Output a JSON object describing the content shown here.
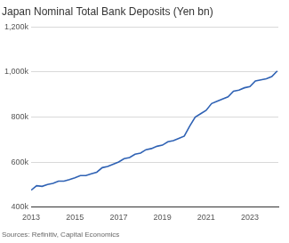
{
  "chart_data": {
    "type": "line",
    "title": "Japan Nominal Total Bank Deposits (Yen bn)",
    "source": "Sources: Refinitiv, Capital Economics",
    "x": [
      2013.0,
      2013.25,
      2013.5,
      2013.75,
      2014.0,
      2014.25,
      2014.5,
      2014.75,
      2015.0,
      2015.25,
      2015.5,
      2015.75,
      2016.0,
      2016.25,
      2016.5,
      2016.75,
      2017.0,
      2017.25,
      2017.5,
      2017.75,
      2018.0,
      2018.25,
      2018.5,
      2018.75,
      2019.0,
      2019.25,
      2019.5,
      2019.75,
      2020.0,
      2020.25,
      2020.5,
      2020.75,
      2021.0,
      2021.25,
      2021.5,
      2021.75,
      2022.0,
      2022.25,
      2022.5,
      2022.75,
      2023.0,
      2023.25,
      2023.5,
      2023.75,
      2024.0,
      2024.25
    ],
    "values": [
      475000,
      495000,
      492000,
      500000,
      505000,
      515000,
      515000,
      522000,
      530000,
      540000,
      540000,
      548000,
      555000,
      575000,
      580000,
      590000,
      600000,
      615000,
      620000,
      635000,
      640000,
      655000,
      660000,
      670000,
      675000,
      690000,
      695000,
      705000,
      715000,
      760000,
      800000,
      815000,
      830000,
      860000,
      870000,
      880000,
      890000,
      915000,
      920000,
      930000,
      935000,
      960000,
      965000,
      970000,
      980000,
      1005000
    ],
    "color": "#2f62b4",
    "xlim": [
      2013,
      2024.3
    ],
    "xticks": [
      2013,
      2015,
      2017,
      2019,
      2021,
      2023
    ],
    "ylim": [
      400000,
      1200000
    ],
    "yticks": [
      {
        "value": 400000,
        "label": "400k"
      },
      {
        "value": 600000,
        "label": "600k"
      },
      {
        "value": 800000,
        "label": "800k"
      },
      {
        "value": 1000000,
        "label": "1,000k"
      },
      {
        "value": 1200000,
        "label": "1,200k"
      }
    ],
    "grid": true
  }
}
